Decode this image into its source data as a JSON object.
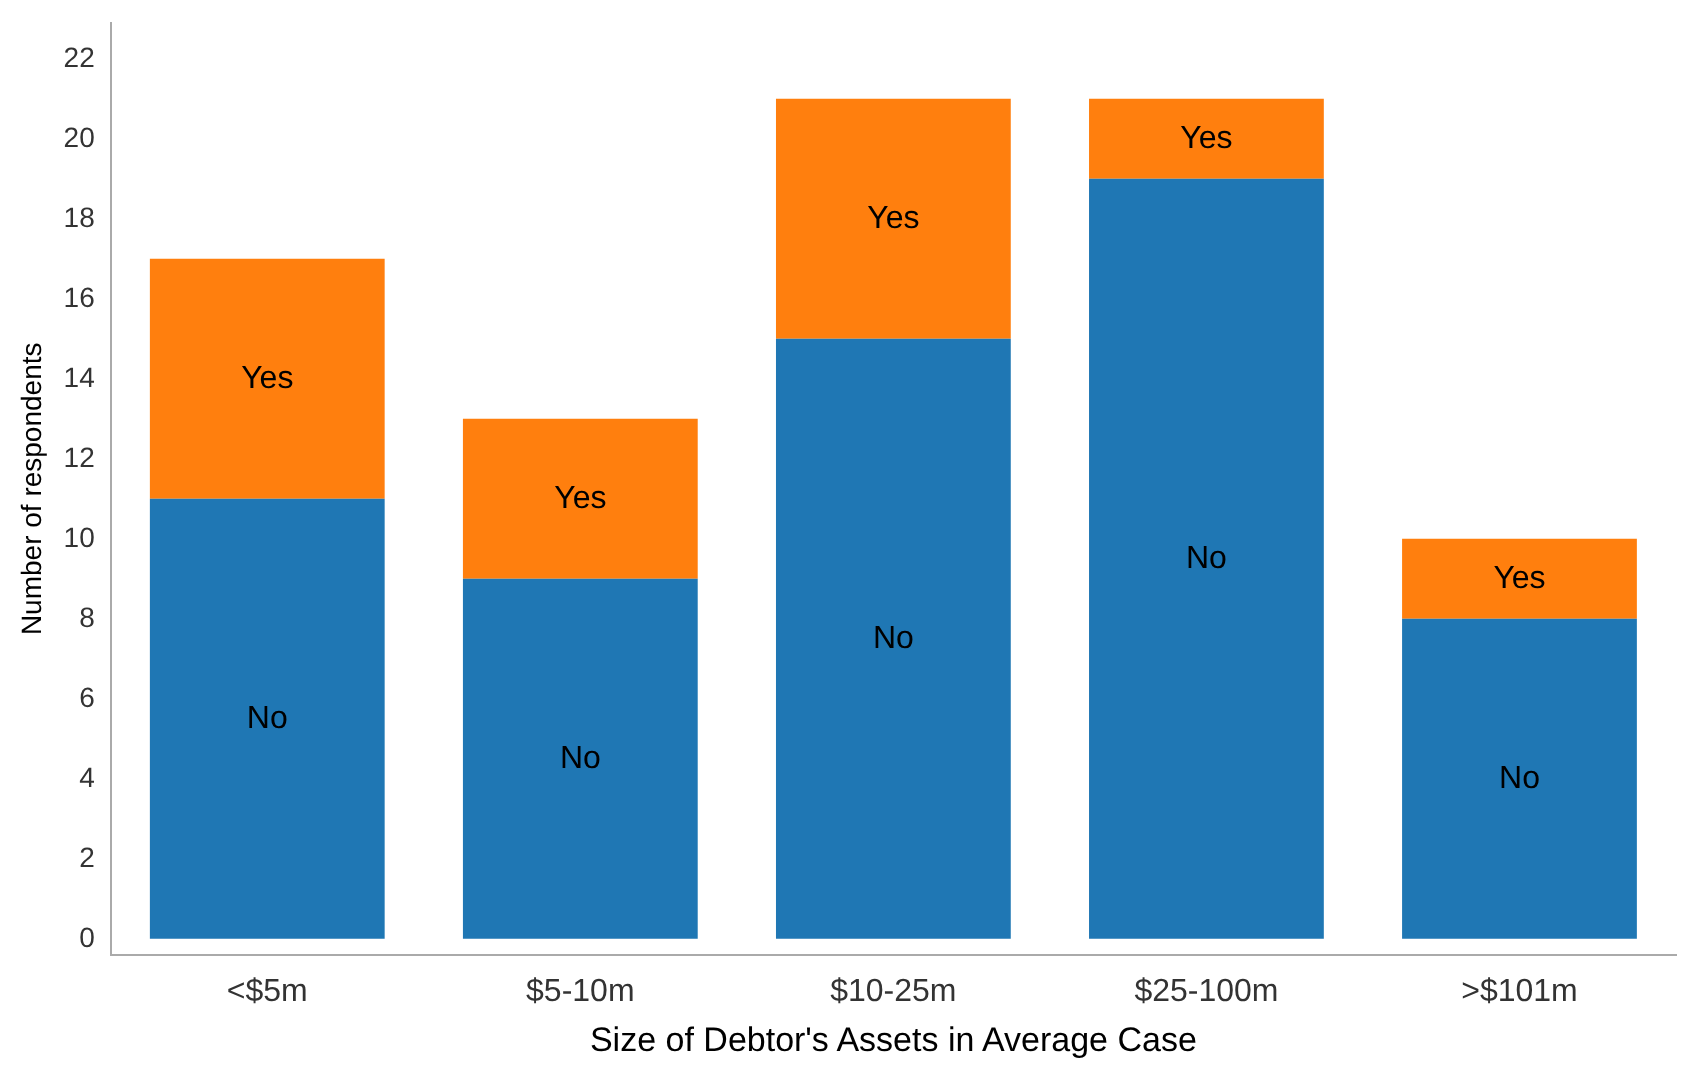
{
  "chart_data": {
    "type": "bar",
    "stacked": true,
    "xlabel": "Size of Debtor's Assets in Average Case",
    "ylabel": "Number of respondents",
    "categories": [
      "<$5m",
      "$5-10m",
      "$10-25m",
      "$25-100m",
      ">$101m"
    ],
    "series": [
      {
        "name": "No",
        "color": "#1f77b4",
        "values": [
          11,
          9,
          15,
          19,
          8
        ]
      },
      {
        "name": "Yes",
        "color": "#ff7f0e",
        "values": [
          6,
          4,
          6,
          2,
          2
        ]
      }
    ],
    "ylim": [
      -0.4,
      22.9
    ],
    "yticks": [
      0,
      2,
      4,
      6,
      8,
      10,
      12,
      14,
      16,
      18,
      20,
      22
    ],
    "grid": false,
    "legend": false
  }
}
